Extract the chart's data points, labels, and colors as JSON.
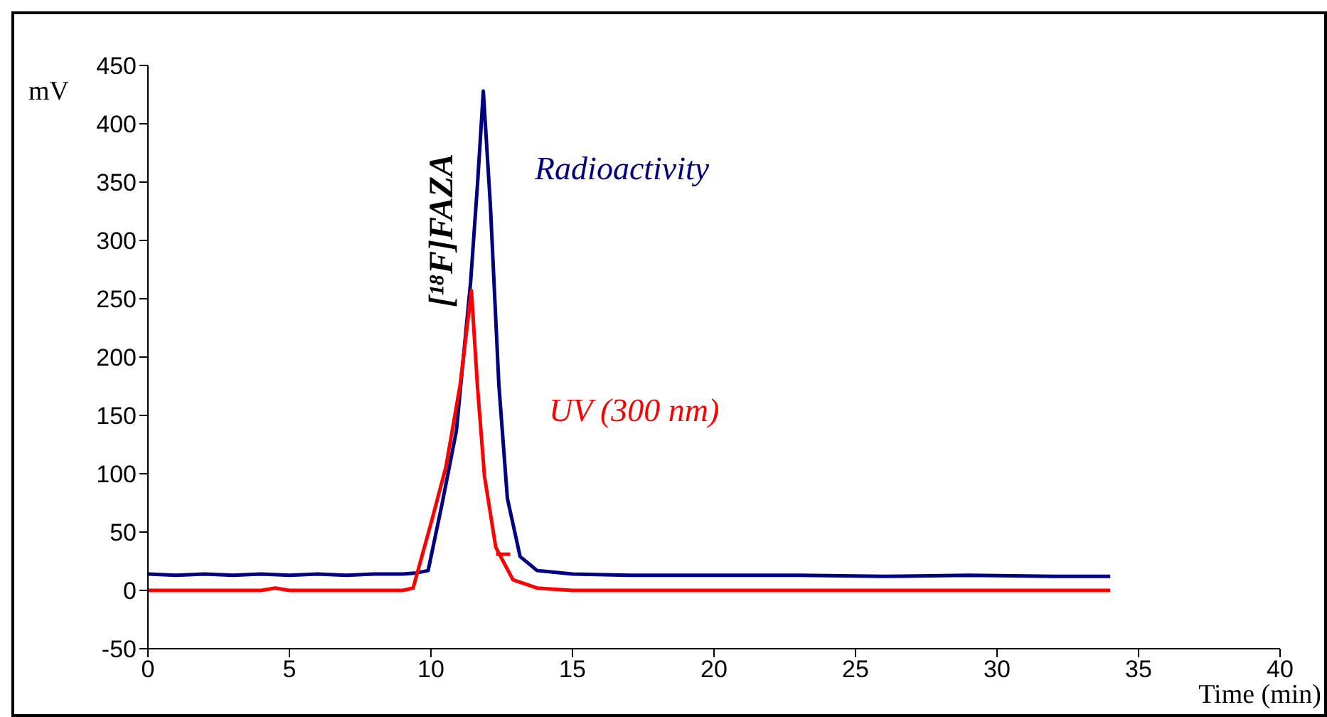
{
  "chart_data": {
    "type": "line",
    "xlabel": "Time (min)",
    "ylabel": "mV",
    "annotations": [
      "[¹⁸F]FAZA"
    ],
    "xlim": [
      0,
      40
    ],
    "xticks": [
      0,
      5,
      10,
      15,
      20,
      25,
      30,
      35,
      40
    ],
    "ylim": [
      -50,
      450
    ],
    "yticks": [
      -50,
      0,
      50,
      100,
      150,
      200,
      250,
      300,
      350,
      400,
      450
    ],
    "grid": false,
    "legend": false,
    "marker": "none",
    "line_style": "solid",
    "series": [
      {
        "name": "Radioactivity",
        "color": "#000080",
        "x": [
          0,
          1,
          2,
          3,
          4,
          5,
          6,
          7,
          8,
          9,
          9.5,
          9.9,
          10.4,
          10.9,
          11.4,
          11.65,
          11.85,
          12.1,
          12.4,
          12.7,
          13.15,
          13.75,
          15,
          17,
          20,
          23,
          26,
          29,
          32,
          34
        ],
        "values": [
          14,
          13,
          14,
          13,
          14,
          13,
          14,
          13,
          14,
          14,
          15,
          17,
          75,
          137,
          264,
          350,
          428,
          330,
          176,
          79,
          29,
          17,
          14,
          13,
          13,
          13,
          12,
          13,
          12,
          12
        ]
      },
      {
        "name": "UV (300 nm)",
        "color": "#ff0000",
        "x": [
          0,
          4,
          4.5,
          5,
          9,
          9.37,
          10.03,
          10.53,
          11.03,
          11.43,
          11.64,
          11.89,
          12.29,
          12.9,
          13.75,
          15,
          20,
          25,
          30,
          34
        ],
        "values": [
          0,
          0,
          2,
          0,
          0,
          2,
          60,
          106,
          176,
          257,
          176,
          98,
          37,
          9,
          2,
          0,
          0,
          0,
          0,
          0
        ]
      },
      {
        "color": "#ff0000",
        "x": [
          12.3,
          12.8
        ],
        "values": [
          31,
          31
        ]
      }
    ]
  }
}
